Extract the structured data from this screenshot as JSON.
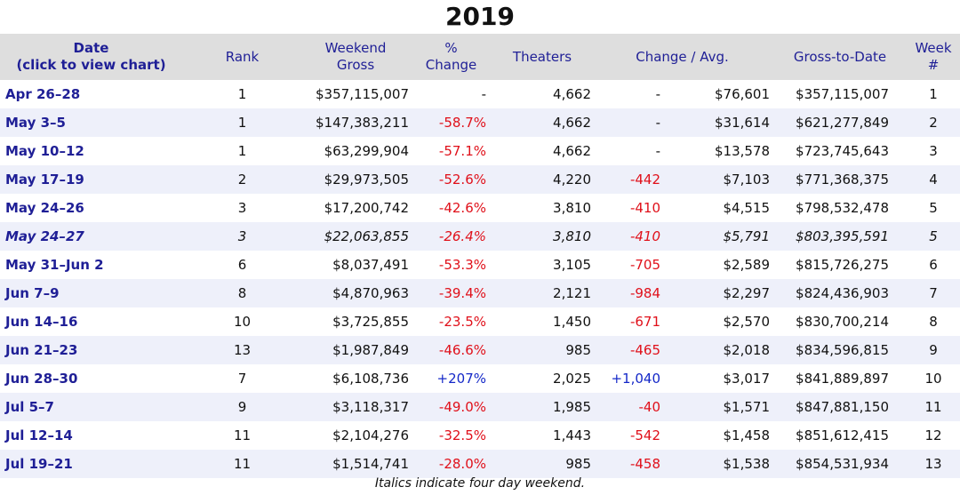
{
  "title": "2019",
  "headers": {
    "date_line1": "Date",
    "date_line2": "(click to view chart)",
    "rank": "Rank",
    "gross_line1": "Weekend",
    "gross_line2": "Gross",
    "pct_line1": "%",
    "pct_line2": "Change",
    "theaters": "Theaters",
    "change_avg": "Change / Avg.",
    "gross_to_date": "Gross-to-Date",
    "week_line1": "Week",
    "week_line2": "#"
  },
  "rows": [
    {
      "date": "Apr 26–28",
      "rank": "1",
      "gross": "$357,115,007",
      "pct": "-",
      "theaters": "4,662",
      "change": "-",
      "avg": "$76,601",
      "gtd": "$357,115,007",
      "week": "1"
    },
    {
      "date": "May 3–5",
      "rank": "1",
      "gross": "$147,383,211",
      "pct": "-58.7%",
      "theaters": "4,662",
      "change": "-",
      "avg": "$31,614",
      "gtd": "$621,277,849",
      "week": "2"
    },
    {
      "date": "May 10–12",
      "rank": "1",
      "gross": "$63,299,904",
      "pct": "-57.1%",
      "theaters": "4,662",
      "change": "-",
      "avg": "$13,578",
      "gtd": "$723,745,643",
      "week": "3"
    },
    {
      "date": "May 17–19",
      "rank": "2",
      "gross": "$29,973,505",
      "pct": "-52.6%",
      "theaters": "4,220",
      "change": "-442",
      "avg": "$7,103",
      "gtd": "$771,368,375",
      "week": "4"
    },
    {
      "date": "May 24–26",
      "rank": "3",
      "gross": "$17,200,742",
      "pct": "-42.6%",
      "theaters": "3,810",
      "change": "-410",
      "avg": "$4,515",
      "gtd": "$798,532,478",
      "week": "5"
    },
    {
      "date": "May 24–27",
      "rank": "3",
      "gross": "$22,063,855",
      "pct": "-26.4%",
      "theaters": "3,810",
      "change": "-410",
      "avg": "$5,791",
      "gtd": "$803,395,591",
      "week": "5"
    },
    {
      "date": "May 31–Jun 2",
      "rank": "6",
      "gross": "$8,037,491",
      "pct": "-53.3%",
      "theaters": "3,105",
      "change": "-705",
      "avg": "$2,589",
      "gtd": "$815,726,275",
      "week": "6"
    },
    {
      "date": "Jun 7–9",
      "rank": "8",
      "gross": "$4,870,963",
      "pct": "-39.4%",
      "theaters": "2,121",
      "change": "-984",
      "avg": "$2,297",
      "gtd": "$824,436,903",
      "week": "7"
    },
    {
      "date": "Jun 14–16",
      "rank": "10",
      "gross": "$3,725,855",
      "pct": "-23.5%",
      "theaters": "1,450",
      "change": "-671",
      "avg": "$2,570",
      "gtd": "$830,700,214",
      "week": "8"
    },
    {
      "date": "Jun 21–23",
      "rank": "13",
      "gross": "$1,987,849",
      "pct": "-46.6%",
      "theaters": "985",
      "change": "-465",
      "avg": "$2,018",
      "gtd": "$834,596,815",
      "week": "9"
    },
    {
      "date": "Jun 28–30",
      "rank": "7",
      "gross": "$6,108,736",
      "pct": "+207%",
      "theaters": "2,025",
      "change": "+1,040",
      "avg": "$3,017",
      "gtd": "$841,889,897",
      "week": "10"
    },
    {
      "date": "Jul 5–7",
      "rank": "9",
      "gross": "$3,118,317",
      "pct": "-49.0%",
      "theaters": "1,985",
      "change": "-40",
      "avg": "$1,571",
      "gtd": "$847,881,150",
      "week": "11"
    },
    {
      "date": "Jul 12–14",
      "rank": "11",
      "gross": "$2,104,276",
      "pct": "-32.5%",
      "theaters": "1,443",
      "change": "-542",
      "avg": "$1,458",
      "gtd": "$851,612,415",
      "week": "12"
    },
    {
      "date": "Jul 19–21",
      "rank": "11",
      "gross": "$1,514,741",
      "pct": "-28.0%",
      "theaters": "985",
      "change": "-458",
      "avg": "$1,538",
      "gtd": "$854,531,934",
      "week": "13"
    }
  ],
  "footnote": "Italics indicate four day weekend.",
  "colors": {
    "header_bg": "#dedede",
    "header_text": "#1f1f96",
    "negative": "#e0101a",
    "positive": "#1428c8",
    "stripe": "#eef0fa"
  }
}
